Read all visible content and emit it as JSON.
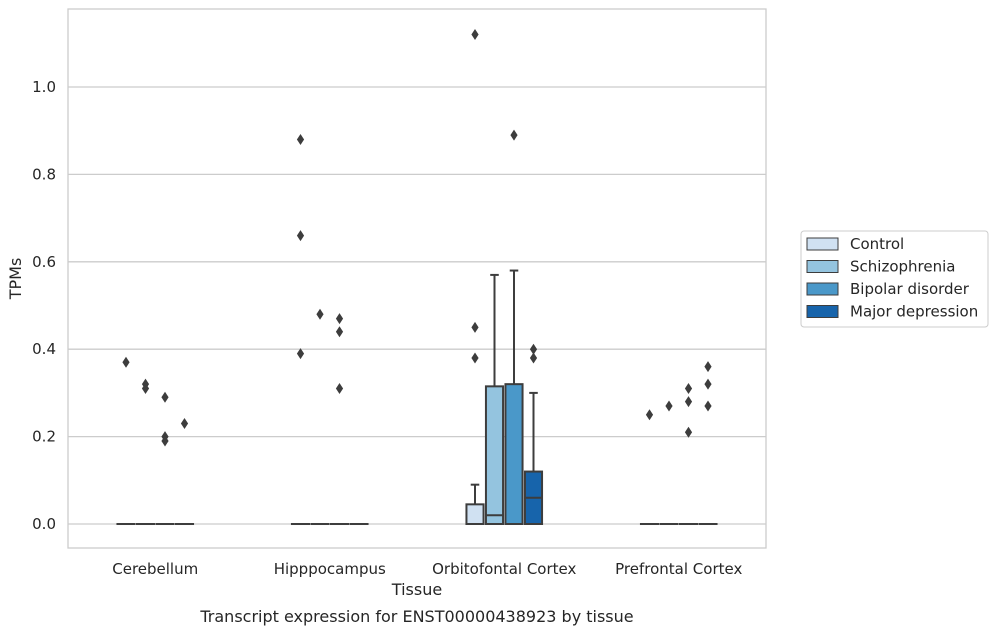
{
  "chart_data": {
    "type": "box",
    "xlabel": "Tissue",
    "ylabel": "TPMs",
    "caption": "Transcript expression for ENST00000438923 by tissue",
    "categories": [
      "Cerebellum",
      "Hipppocampus",
      "Orbitofontal Cortex",
      "Prefrontal Cortex"
    ],
    "ylim": [
      -0.055,
      1.18
    ],
    "yticks": [
      0.0,
      0.2,
      0.4,
      0.6,
      0.8,
      1.0
    ],
    "ytick_labels": [
      "0.0",
      "0.2",
      "0.4",
      "0.6",
      "0.8",
      "1.0"
    ],
    "grid": "horizontal",
    "legend_position": "right",
    "groups": [
      {
        "name": "Control",
        "color": "#d0e1f2"
      },
      {
        "name": "Schizophrenia",
        "color": "#94c4df"
      },
      {
        "name": "Bipolar disorder",
        "color": "#4a98c9"
      },
      {
        "name": "Major depression",
        "color": "#1764ab"
      }
    ],
    "boxes": [
      {
        "category": "Cerebellum",
        "group": "Control",
        "whisker_low": 0,
        "q1": 0,
        "median": 0,
        "q3": 0,
        "whisker_high": 0,
        "outliers": [
          0.37
        ]
      },
      {
        "category": "Cerebellum",
        "group": "Schizophrenia",
        "whisker_low": 0,
        "q1": 0,
        "median": 0,
        "q3": 0,
        "whisker_high": 0,
        "outliers": [
          0.32,
          0.31
        ]
      },
      {
        "category": "Cerebellum",
        "group": "Bipolar disorder",
        "whisker_low": 0,
        "q1": 0,
        "median": 0,
        "q3": 0,
        "whisker_high": 0,
        "outliers": [
          0.29,
          0.2,
          0.19
        ]
      },
      {
        "category": "Cerebellum",
        "group": "Major depression",
        "whisker_low": 0,
        "q1": 0,
        "median": 0,
        "q3": 0,
        "whisker_high": 0,
        "outliers": [
          0.23
        ]
      },
      {
        "category": "Hipppocampus",
        "group": "Control",
        "whisker_low": 0,
        "q1": 0,
        "median": 0,
        "q3": 0,
        "whisker_high": 0,
        "outliers": [
          0.88,
          0.66,
          0.39
        ]
      },
      {
        "category": "Hipppocampus",
        "group": "Schizophrenia",
        "whisker_low": 0,
        "q1": 0,
        "median": 0,
        "q3": 0,
        "whisker_high": 0,
        "outliers": [
          0.48
        ]
      },
      {
        "category": "Hipppocampus",
        "group": "Bipolar disorder",
        "whisker_low": 0,
        "q1": 0,
        "median": 0,
        "q3": 0,
        "whisker_high": 0,
        "outliers": [
          0.47,
          0.44,
          0.31
        ]
      },
      {
        "category": "Hipppocampus",
        "group": "Major depression",
        "whisker_low": 0,
        "q1": 0,
        "median": 0,
        "q3": 0,
        "whisker_high": 0,
        "outliers": []
      },
      {
        "category": "Orbitofontal Cortex",
        "group": "Control",
        "whisker_low": 0,
        "q1": 0,
        "median": 0,
        "q3": 0.045,
        "whisker_high": 0.09,
        "outliers": [
          1.12,
          0.45,
          0.38
        ]
      },
      {
        "category": "Orbitofontal Cortex",
        "group": "Schizophrenia",
        "whisker_low": 0,
        "q1": 0,
        "median": 0.02,
        "q3": 0.315,
        "whisker_high": 0.57,
        "outliers": []
      },
      {
        "category": "Orbitofontal Cortex",
        "group": "Bipolar disorder",
        "whisker_low": 0,
        "q1": 0,
        "median": 0,
        "q3": 0.32,
        "whisker_high": 0.58,
        "outliers": [
          0.89
        ]
      },
      {
        "category": "Orbitofontal Cortex",
        "group": "Major depression",
        "whisker_low": 0,
        "q1": 0,
        "median": 0.06,
        "q3": 0.12,
        "whisker_high": 0.3,
        "outliers": [
          0.4,
          0.38
        ]
      },
      {
        "category": "Prefrontal Cortex",
        "group": "Control",
        "whisker_low": 0,
        "q1": 0,
        "median": 0,
        "q3": 0,
        "whisker_high": 0,
        "outliers": [
          0.25
        ]
      },
      {
        "category": "Prefrontal Cortex",
        "group": "Schizophrenia",
        "whisker_low": 0,
        "q1": 0,
        "median": 0,
        "q3": 0,
        "whisker_high": 0,
        "outliers": [
          0.27
        ]
      },
      {
        "category": "Prefrontal Cortex",
        "group": "Bipolar disorder",
        "whisker_low": 0,
        "q1": 0,
        "median": 0,
        "q3": 0,
        "whisker_high": 0,
        "outliers": [
          0.31,
          0.28,
          0.21
        ]
      },
      {
        "category": "Prefrontal Cortex",
        "group": "Major depression",
        "whisker_low": 0,
        "q1": 0,
        "median": 0,
        "q3": 0,
        "whisker_high": 0,
        "outliers": [
          0.36,
          0.32,
          0.27
        ]
      }
    ]
  }
}
